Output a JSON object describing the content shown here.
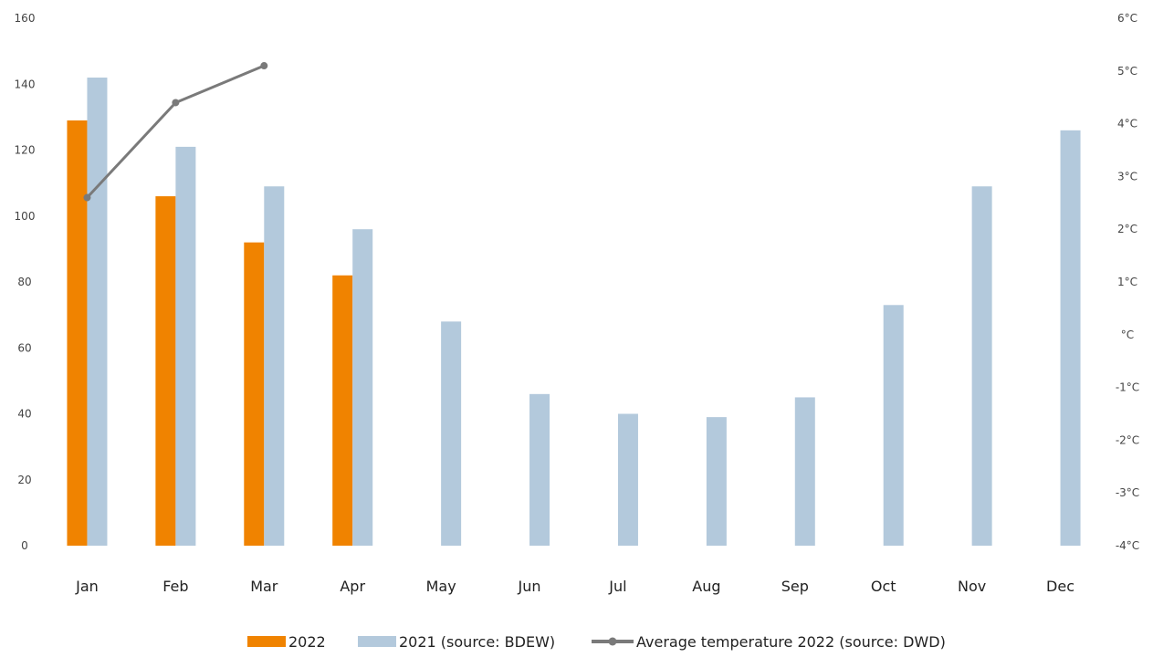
{
  "chart_data": {
    "type": "bar",
    "categories": [
      "Jan",
      "Feb",
      "Mar",
      "Apr",
      "May",
      "Jun",
      "Jul",
      "Aug",
      "Sep",
      "Oct",
      "Nov",
      "Dec"
    ],
    "series": [
      {
        "name": "2022",
        "kind": "bar",
        "axis": "left",
        "color": "#f08300",
        "values": [
          129,
          106,
          92,
          82,
          null,
          null,
          null,
          null,
          null,
          null,
          null,
          null
        ]
      },
      {
        "name": "2021 (source: BDEW)",
        "kind": "bar",
        "axis": "left",
        "color": "#b3c9dc",
        "values": [
          142,
          121,
          109,
          96,
          68,
          46,
          40,
          39,
          45,
          73,
          109,
          126
        ]
      },
      {
        "name": "Average temperature 2022 (source: DWD)",
        "kind": "line",
        "axis": "right",
        "color": "#7a7a7a",
        "values": [
          2.6,
          4.4,
          5.1,
          null,
          null,
          null,
          null,
          null,
          null,
          null,
          null,
          null
        ]
      }
    ],
    "y_left": {
      "range": [
        0,
        160
      ],
      "ticks": [
        "0",
        "20",
        "40",
        "60",
        "80",
        "100",
        "120",
        "140",
        "160"
      ]
    },
    "y_right": {
      "range": [
        -4,
        6
      ],
      "ticks": [
        "-4°C",
        "-3°C",
        "-2°C",
        "-1°C",
        "°C",
        "1°C",
        "2°C",
        "3°C",
        "4°C",
        "5°C",
        "6°C"
      ]
    },
    "grid": false,
    "legend_position": "bottom"
  }
}
